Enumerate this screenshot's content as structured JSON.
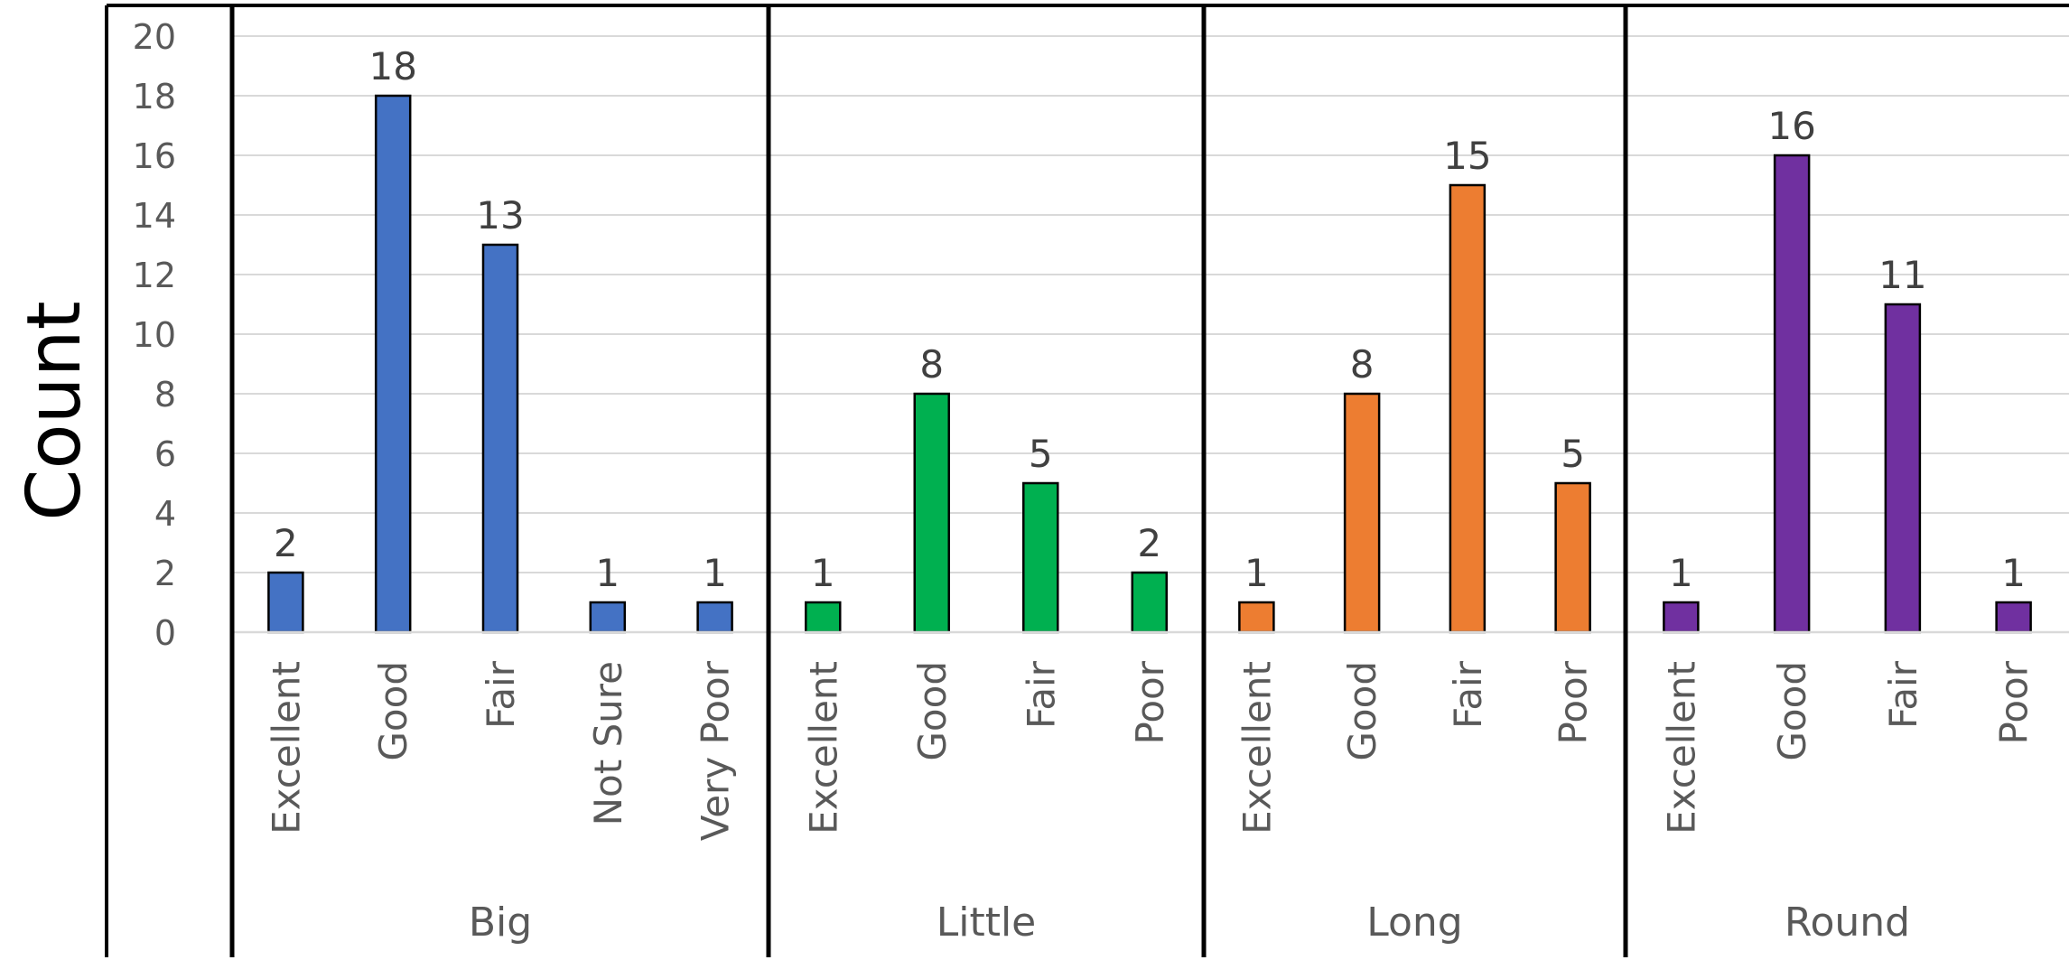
{
  "chart_data": {
    "type": "bar",
    "ylabel": "Count",
    "ylim": [
      0,
      20
    ],
    "yticks": [
      0,
      2,
      4,
      6,
      8,
      10,
      12,
      14,
      16,
      18,
      20
    ],
    "grid": true,
    "groups": [
      {
        "name": "Big",
        "color": "#4472C4",
        "categories": [
          "Excellent",
          "Good",
          "Fair",
          "Not Sure",
          "Very Poor"
        ],
        "values": [
          2,
          18,
          13,
          1,
          1
        ]
      },
      {
        "name": "Little",
        "color": "#00B050",
        "categories": [
          "Excellent",
          "Good",
          "Fair",
          "Poor"
        ],
        "values": [
          1,
          8,
          5,
          2
        ]
      },
      {
        "name": "Long",
        "color": "#ED7D31",
        "categories": [
          "Excellent",
          "Good",
          "Fair",
          "Poor"
        ],
        "values": [
          1,
          8,
          15,
          5
        ]
      },
      {
        "name": "Round",
        "color": "#7030A0",
        "categories": [
          "Excellent",
          "Good",
          "Fair",
          "Poor"
        ],
        "values": [
          1,
          16,
          11,
          1
        ]
      }
    ]
  }
}
